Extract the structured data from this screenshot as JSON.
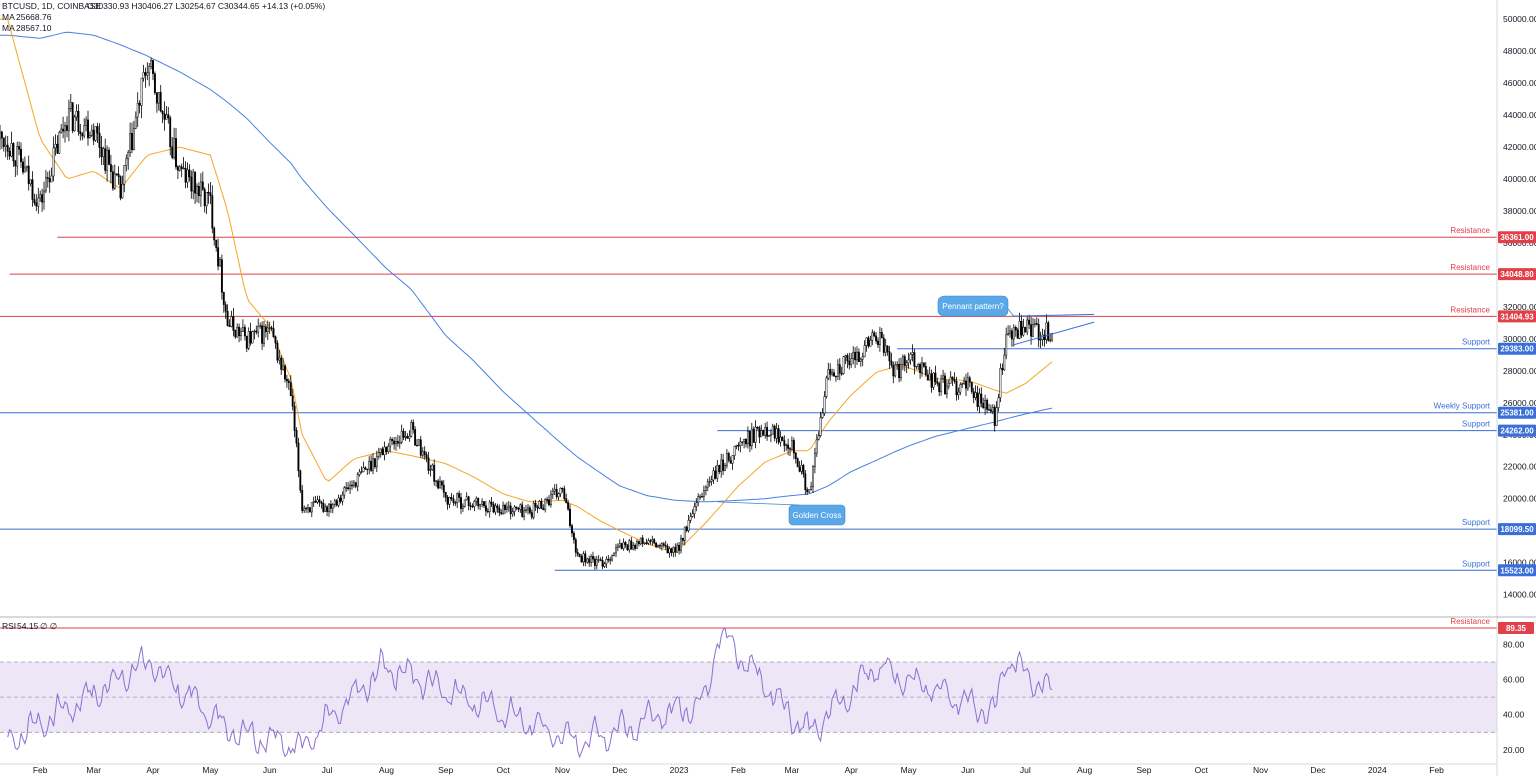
{
  "header": {
    "symbol": "BTCUSD, 1D, COINBASE",
    "ohlc": "O30330.93  H30406.27  L30254.67  C30344.65  +14.13 (+0.05%)",
    "ma_fast_label": "MA",
    "ma_fast_value": "25668.76",
    "ma_slow_label": "MA",
    "ma_slow_value": "28567.10"
  },
  "colors": {
    "candle": "#000000",
    "ma_fast": "#4a7fe0",
    "ma_slow": "#f5a623",
    "resistance": "#e0404a",
    "support": "#3a6fd8",
    "rsi_line": "#8c6fd1",
    "rsi_band": "#ece6f7",
    "annotation": "#5aa8e8"
  },
  "price_axis": {
    "ticks": [
      "50000.00",
      "48000.00",
      "46000.00",
      "44000.00",
      "42000.00",
      "40000.00",
      "38000.00",
      "36000.00",
      "34000.00",
      "32000.00",
      "30000.00",
      "28000.00",
      "26000.00",
      "24000.00",
      "22000.00",
      "20000.00",
      "18000.00",
      "16000.00",
      "14000.00"
    ]
  },
  "time_axis": {
    "labels": [
      "Feb",
      "Mar",
      "Apr",
      "May",
      "Jun",
      "Jul",
      "Aug",
      "Sep",
      "Oct",
      "Nov",
      "Dec",
      "2023",
      "Feb",
      "Mar",
      "Apr",
      "May",
      "Jun",
      "Jul",
      "Aug",
      "Sep",
      "Oct",
      "Nov",
      "Dec",
      "2024",
      "Feb"
    ]
  },
  "levels": [
    {
      "label": "Resistance",
      "value": "36361.00",
      "kind": "resistance"
    },
    {
      "label": "Resistance",
      "value": "34048.80",
      "kind": "resistance"
    },
    {
      "label": "Resistance",
      "value": "31404.93",
      "kind": "resistance"
    },
    {
      "label": "Support",
      "value": "29383.00",
      "kind": "support"
    },
    {
      "label": "Weekly Support",
      "value": "25381.00",
      "kind": "support"
    },
    {
      "label": "Support",
      "value": "24262.00",
      "kind": "support"
    },
    {
      "label": "Support",
      "value": "18099.50",
      "kind": "support"
    },
    {
      "label": "Support",
      "value": "15523.00",
      "kind": "support"
    }
  ],
  "annotations": {
    "pennant": "Pennant pattern?",
    "golden_cross": "Golden Cross"
  },
  "rsi": {
    "label": "RSI",
    "value": "54.15",
    "extra": "∅  ∅",
    "ticks": [
      "80.00",
      "60.00",
      "40.00",
      "20.00"
    ],
    "resistance_label": "Resistance",
    "resistance_value": "89.35"
  },
  "chart_data": {
    "type": "line",
    "title": "BTCUSD, 1D, COINBASE",
    "x": [
      "2022-01-15",
      "2022-02-01",
      "2022-02-15",
      "2022-03-01",
      "2022-03-15",
      "2022-03-29",
      "2022-04-15",
      "2022-05-01",
      "2022-05-10",
      "2022-05-20",
      "2022-06-01",
      "2022-06-12",
      "2022-06-18",
      "2022-07-01",
      "2022-07-15",
      "2022-08-01",
      "2022-08-14",
      "2022-09-01",
      "2022-09-15",
      "2022-10-01",
      "2022-10-15",
      "2022-11-01",
      "2022-11-09",
      "2022-11-21",
      "2022-12-01",
      "2022-12-15",
      "2022-12-30",
      "2023-01-15",
      "2023-02-01",
      "2023-02-15",
      "2023-03-01",
      "2023-03-10",
      "2023-03-20",
      "2023-04-01",
      "2023-04-14",
      "2023-04-25",
      "2023-05-01",
      "2023-05-15",
      "2023-06-01",
      "2023-06-15",
      "2023-06-21",
      "2023-07-01",
      "2023-07-15"
    ],
    "series": [
      {
        "name": "BTCUSD",
        "values": [
          42500,
          38500,
          44000,
          43200,
          39000,
          47200,
          40500,
          38500,
          31000,
          30000,
          30500,
          26500,
          19500,
          19500,
          21000,
          23300,
          24300,
          20000,
          19700,
          19400,
          19200,
          20500,
          16500,
          15900,
          17000,
          17300,
          16600,
          20800,
          23300,
          24500,
          23500,
          20200,
          28000,
          28500,
          30300,
          27800,
          29200,
          27200,
          27000,
          25100,
          30000,
          30600,
          30344
        ]
      },
      {
        "name": "MA",
        "values": [
          49000,
          48800,
          49200,
          49000,
          48400,
          47700,
          46700,
          45600,
          44800,
          43800,
          42300,
          41000,
          40000,
          38200,
          36500,
          34400,
          33100,
          30200,
          28700,
          26700,
          25200,
          23400,
          22600,
          21600,
          20800,
          20200,
          19900,
          19800,
          19900,
          20000,
          20200,
          20300,
          20800,
          21700,
          22400,
          23000,
          23300,
          23900,
          24400,
          24800,
          25000,
          25300,
          25669
        ]
      },
      {
        "name": "MA",
        "values": [
          50000,
          42500,
          40000,
          40500,
          39400,
          41500,
          42000,
          41500,
          38000,
          32500,
          30800,
          27500,
          24000,
          21000,
          22500,
          23000,
          22700,
          22200,
          21400,
          20300,
          19800,
          19900,
          19500,
          18600,
          18000,
          17200,
          16600,
          18500,
          20800,
          22300,
          23000,
          23000,
          24800,
          26500,
          27900,
          28300,
          28200,
          27500,
          27400,
          26800,
          26600,
          27200,
          28567
        ]
      }
    ],
    "ylabel": "",
    "ylim": [
      12600,
      51200
    ],
    "levels": [
      36361.0,
      34048.8,
      31404.93,
      29383.0,
      25381.0,
      24262.0,
      18099.5,
      15523.0
    ],
    "rsi": {
      "x": [
        "2022-01-15",
        "2022-03-01",
        "2022-03-29",
        "2022-05-10",
        "2022-06-18",
        "2022-08-01",
        "2022-11-09",
        "2023-01-15",
        "2023-01-21",
        "2023-03-10",
        "2023-04-14",
        "2023-06-15",
        "2023-06-21",
        "2023-07-15"
      ],
      "values": [
        25,
        52,
        70,
        32,
        22,
        68,
        24,
        48,
        88,
        29,
        68,
        40,
        72,
        54.15
      ],
      "ylim": [
        12,
        95
      ],
      "bands": [
        30,
        70
      ],
      "resistance": 89.35
    },
    "grid": false,
    "legend": "top-left"
  }
}
